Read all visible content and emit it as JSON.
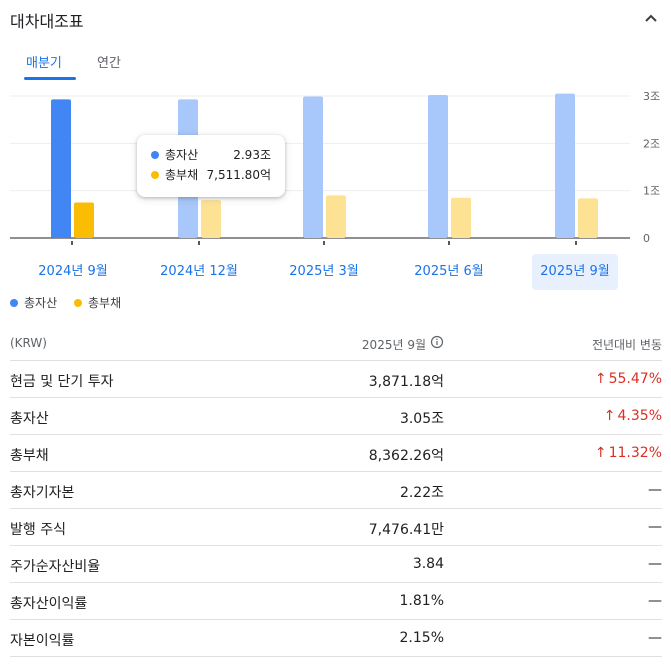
{
  "header": {
    "title": "대차대조표",
    "collapse_icon": "chevron-up-icon"
  },
  "tabs": [
    {
      "label": "매분기",
      "active": true
    },
    {
      "label": "연간",
      "active": false
    }
  ],
  "chart_data": {
    "type": "bar",
    "categories": [
      "2024년 9월",
      "2024년 12월",
      "2025년 3월",
      "2025년 6월",
      "2025년 9월"
    ],
    "selected_category": "2025년 9월",
    "series": [
      {
        "name": "총자산",
        "values": [
          2.93,
          2.93,
          2.99,
          3.02,
          3.05
        ],
        "color": "#4285f4",
        "dim_color": "#a8c7fa"
      },
      {
        "name": "총부채",
        "values": [
          0.7512,
          0.8,
          0.9,
          0.85,
          0.8362
        ],
        "color": "#fbbc04",
        "dim_color": "#fde293"
      }
    ],
    "ylim": [
      0,
      3
    ],
    "yticks": [
      {
        "value": 0,
        "label": "0"
      },
      {
        "value": 1,
        "label": "1조"
      },
      {
        "value": 2,
        "label": "2조"
      },
      {
        "value": 3,
        "label": "3조"
      }
    ],
    "highlighted_index": 0,
    "tooltip": {
      "rows": [
        {
          "name": "총자산",
          "value": "2.93조"
        },
        {
          "name": "총부채",
          "value": "7,511.80억"
        }
      ]
    }
  },
  "table": {
    "unit_header": "(KRW)",
    "period_header": "2025년 9월",
    "change_header": "전년대비 변동",
    "rows": [
      {
        "label": "현금 및 단기 투자",
        "value": "3,871.18억",
        "change": "55.47%",
        "direction": "up"
      },
      {
        "label": "총자산",
        "value": "3.05조",
        "change": "4.35%",
        "direction": "up"
      },
      {
        "label": "총부채",
        "value": "8,362.26억",
        "change": "11.32%",
        "direction": "up"
      },
      {
        "label": "총자기자본",
        "value": "2.22조",
        "change": "—",
        "direction": "none"
      },
      {
        "label": "발행 주식",
        "value": "7,476.41만",
        "change": "—",
        "direction": "none"
      },
      {
        "label": "주가순자산비율",
        "value": "3.84",
        "change": "—",
        "direction": "none"
      },
      {
        "label": "총자산이익률",
        "value": "1.81%",
        "change": "—",
        "direction": "none"
      },
      {
        "label": "자본이익률",
        "value": "2.15%",
        "change": "—",
        "direction": "none"
      }
    ]
  }
}
